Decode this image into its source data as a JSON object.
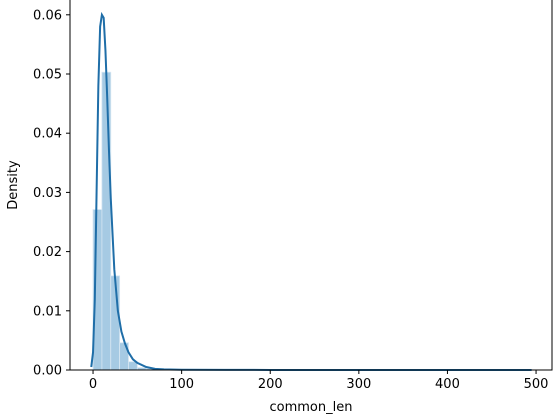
{
  "chart_data": {
    "type": "histogram",
    "title": "",
    "xlabel": "common_len",
    "ylabel": "Density",
    "xlim": [
      -26,
      518
    ],
    "ylim": [
      0,
      0.0625
    ],
    "xticks": [
      0,
      100,
      200,
      300,
      400,
      500
    ],
    "yticks": [
      0.0,
      0.01,
      0.02,
      0.03,
      0.04,
      0.05,
      0.06
    ],
    "grid": false,
    "bar_color": "#a6cae3",
    "bar_edge_color": "#d6e6f2",
    "line_color": "#1f6ea8",
    "histogram": {
      "bin_width": 10,
      "bins": [
        {
          "x0": 0,
          "x1": 10,
          "density": 0.0271
        },
        {
          "x0": 10,
          "x1": 20,
          "density": 0.0503
        },
        {
          "x0": 20,
          "x1": 30,
          "density": 0.0159
        },
        {
          "x0": 30,
          "x1": 40,
          "density": 0.0046
        },
        {
          "x0": 40,
          "x1": 50,
          "density": 0.0014
        },
        {
          "x0": 50,
          "x1": 60,
          "density": 0.0004
        },
        {
          "x0": 60,
          "x1": 70,
          "density": 0.0002
        },
        {
          "x0": 70,
          "x1": 80,
          "density": 0.0001
        }
      ]
    },
    "kde": {
      "x": [
        -2,
        0,
        2,
        4,
        6,
        8,
        10,
        12,
        14,
        16,
        18,
        20,
        24,
        28,
        32,
        36,
        40,
        45,
        50,
        60,
        70,
        80,
        100,
        150,
        200,
        300,
        400,
        495
      ],
      "y": [
        0.0005,
        0.003,
        0.012,
        0.03,
        0.048,
        0.058,
        0.06,
        0.0595,
        0.054,
        0.046,
        0.037,
        0.029,
        0.017,
        0.01,
        0.0065,
        0.0045,
        0.003,
        0.0018,
        0.0012,
        0.0005,
        0.0002,
        0.0001,
        5e-05,
        2e-05,
        1e-05,
        5e-06,
        3e-06,
        1e-06
      ]
    }
  }
}
